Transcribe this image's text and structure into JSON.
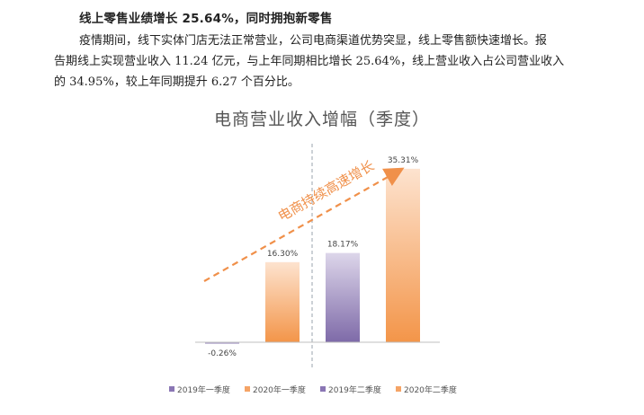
{
  "document": {
    "heading": "线上零售业绩增长 25.64%，同时拥抱新零售",
    "paragraph_lines": [
      "疫情期间，线下实体门店无法正常营业，公司电商渠道优势突显，线上零售额快速增长。报",
      "告期线上实现营业收入 11.24 亿元，与上年同期相比增长 25.64%，线上营业收入占公司营业收入",
      "的 34.95%，较上年同期提升 6.27 个百分比。"
    ]
  },
  "chart_data": {
    "type": "bar",
    "title": "电商营业收入增幅（季度）",
    "categories": [
      "2019年一季度",
      "2020年一季度",
      "2019年二季度",
      "2020年二季度"
    ],
    "values": [
      -0.26,
      16.3,
      18.17,
      35.31
    ],
    "value_labels": [
      "-0.26%",
      "16.30%",
      "18.17%",
      "35.31%"
    ],
    "colors": [
      "#8a76b4",
      "#f5a466",
      "#8a76b4",
      "#f5a466"
    ],
    "ylim": [
      -2,
      36
    ],
    "grid": false,
    "legend_position": "bottom",
    "annotation": "电商持续高速增长"
  }
}
